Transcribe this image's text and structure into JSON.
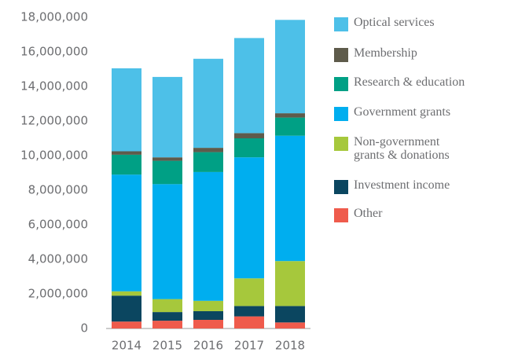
{
  "chart_data": {
    "type": "stacked_bar",
    "categories": [
      "2014",
      "2015",
      "2016",
      "2017",
      "2018"
    ],
    "series": [
      {
        "name": "Other",
        "color": "#ef5b4c",
        "values": [
          400000,
          450000,
          500000,
          700000,
          350000
        ]
      },
      {
        "name": "Investment income",
        "color": "#0b4660",
        "values": [
          1500000,
          500000,
          500000,
          600000,
          950000
        ]
      },
      {
        "name": "Non-government grants & donations",
        "color": "#a6c83c",
        "values": [
          250000,
          750000,
          600000,
          1600000,
          2600000
        ]
      },
      {
        "name": "Government grants",
        "color": "#00aeef",
        "values": [
          6750000,
          6650000,
          7450000,
          7000000,
          7250000
        ]
      },
      {
        "name": "Research & education",
        "color": "#00a085",
        "values": [
          1150000,
          1350000,
          1150000,
          1100000,
          1050000
        ]
      },
      {
        "name": "Membership",
        "color": "#5e5b4b",
        "values": [
          200000,
          200000,
          250000,
          300000,
          250000
        ]
      },
      {
        "name": "Optical services",
        "color": "#4dc0e8",
        "values": [
          4800000,
          4650000,
          5150000,
          5500000,
          5400000
        ]
      }
    ],
    "ylim": [
      0,
      18000000
    ],
    "yticks": [
      0,
      {
        "value": 2000000,
        "label": "2,000,000"
      },
      {
        "value": 4000000,
        "label": "4,000,000"
      },
      {
        "value": 6000000,
        "label": "6,000,000"
      },
      {
        "value": 8000000,
        "label": "8,000,000"
      },
      {
        "value": 10000000,
        "label": "10,000,000"
      },
      {
        "value": 12000000,
        "label": "12,000,000"
      },
      {
        "value": 14000000,
        "label": "14,000,000"
      },
      {
        "value": 16000000,
        "label": "16,000,000"
      },
      {
        "value": 18000000,
        "label": "18,000,000"
      }
    ],
    "grid": false,
    "legend": "right"
  }
}
